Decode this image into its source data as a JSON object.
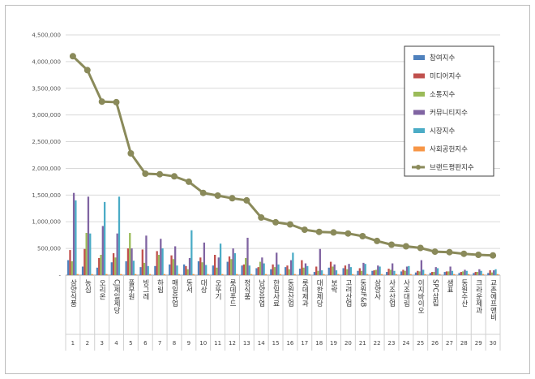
{
  "chart_data": {
    "type": "bar",
    "ylim": [
      0,
      4500000
    ],
    "yticks": [
      "-",
      "500,000",
      "1,000,000",
      "1,500,000",
      "2,000,000",
      "2,500,000",
      "3,000,000",
      "3,500,000",
      "4,000,000",
      "4,500,000"
    ],
    "ranks": [
      "1",
      "2",
      "3",
      "4",
      "5",
      "6",
      "7",
      "8",
      "9",
      "10",
      "11",
      "12",
      "13",
      "14",
      "15",
      "16",
      "17",
      "18",
      "19",
      "20",
      "21",
      "22",
      "23",
      "24",
      "25",
      "26",
      "27",
      "28",
      "29",
      "30"
    ],
    "categories": [
      "삼양식품",
      "농심",
      "오리온",
      "CJ제일제당",
      "풀무원",
      "빙그레",
      "하림",
      "매일유업",
      "동서",
      "대상",
      "오뚜기",
      "롯데푸드",
      "정식품",
      "남양유업",
      "한일사료",
      "동원산업",
      "롯데제과",
      "대한제당",
      "보락",
      "고려산업",
      "동원F&B",
      "삼양사",
      "사조산업",
      "사조대림",
      "이지바이오",
      "SPC삼립",
      "샘표",
      "동원수산",
      "크라운제과",
      "교촌에프앤비"
    ],
    "legend_position": "top-right",
    "series": [
      {
        "name": "참여지수",
        "color": "#4f81bd",
        "kind": "bar",
        "values": [
          280000,
          160000,
          140000,
          240000,
          260000,
          150000,
          170000,
          200000,
          200000,
          260000,
          180000,
          250000,
          180000,
          130000,
          110000,
          150000,
          120000,
          60000,
          140000,
          130000,
          80000,
          80000,
          60000,
          70000,
          50000,
          40000,
          60000,
          40000,
          40000,
          40000
        ]
      },
      {
        "name": "미디어지수",
        "color": "#c0504d",
        "kind": "bar",
        "values": [
          470000,
          490000,
          320000,
          410000,
          500000,
          480000,
          450000,
          370000,
          170000,
          330000,
          380000,
          350000,
          200000,
          150000,
          200000,
          180000,
          280000,
          160000,
          250000,
          180000,
          130000,
          90000,
          120000,
          100000,
          80000,
          60000,
          70000,
          60000,
          60000,
          90000
        ]
      },
      {
        "name": "소통지수",
        "color": "#9bbb59",
        "kind": "bar",
        "values": [
          260000,
          790000,
          380000,
          330000,
          790000,
          230000,
          380000,
          300000,
          110000,
          240000,
          140000,
          300000,
          320000,
          250000,
          150000,
          110000,
          140000,
          80000,
          160000,
          110000,
          80000,
          100000,
          100000,
          80000,
          70000,
          60000,
          70000,
          70000,
          60000,
          50000
        ]
      },
      {
        "name": "커뮤니티지수",
        "color": "#8064a2",
        "kind": "bar",
        "values": [
          1540000,
          1470000,
          920000,
          780000,
          500000,
          740000,
          680000,
          540000,
          320000,
          610000,
          330000,
          500000,
          700000,
          330000,
          420000,
          280000,
          220000,
          490000,
          200000,
          210000,
          230000,
          180000,
          220000,
          160000,
          280000,
          150000,
          160000,
          100000,
          110000,
          90000
        ]
      },
      {
        "name": "시장지수",
        "color": "#4bacc6",
        "kind": "bar",
        "values": [
          1400000,
          780000,
          1370000,
          1470000,
          270000,
          170000,
          500000,
          180000,
          840000,
          190000,
          590000,
          410000,
          180000,
          220000,
          200000,
          420000,
          170000,
          90000,
          90000,
          150000,
          210000,
          160000,
          80000,
          170000,
          100000,
          130000,
          80000,
          80000,
          80000,
          110000
        ]
      },
      {
        "name": "사회공헌지수",
        "color": "#f79646",
        "kind": "bar",
        "values": [
          20000,
          20000,
          20000,
          20000,
          20000,
          20000,
          20000,
          20000,
          20000,
          20000,
          20000,
          20000,
          20000,
          20000,
          20000,
          20000,
          20000,
          20000,
          20000,
          20000,
          20000,
          20000,
          20000,
          20000,
          20000,
          20000,
          20000,
          20000,
          20000,
          20000
        ]
      },
      {
        "name": "브랜드평판지수",
        "color": "#8a8a5a",
        "kind": "line",
        "values": [
          4100000,
          3840000,
          3250000,
          3240000,
          2280000,
          1900000,
          1890000,
          1850000,
          1750000,
          1540000,
          1490000,
          1440000,
          1400000,
          1080000,
          990000,
          950000,
          850000,
          810000,
          800000,
          780000,
          730000,
          640000,
          570000,
          540000,
          510000,
          440000,
          430000,
          400000,
          380000,
          370000
        ]
      }
    ]
  }
}
